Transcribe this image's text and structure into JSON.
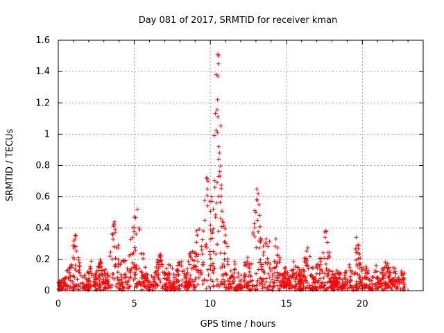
{
  "chart_data": {
    "type": "scatter",
    "title": "Day 081 of 2017, SRMTID for receiver kman",
    "xlabel": "GPS time / hours",
    "ylabel": "SRMTID / TECUs",
    "xlim": [
      0,
      24
    ],
    "ylim": [
      0,
      1.6
    ],
    "x_ticks": [
      0,
      5,
      10,
      15,
      20
    ],
    "x_tick_labels": [
      "0",
      "5",
      "10",
      "15",
      "20"
    ],
    "y_ticks": [
      0,
      0.2,
      0.4,
      0.6,
      0.8,
      1,
      1.2,
      1.4,
      1.6
    ],
    "y_tick_labels": [
      "0",
      "0.2",
      "0.4",
      "0.6",
      "0.8",
      "1",
      "1.2",
      "1.4",
      "1.6"
    ],
    "grid": true,
    "marker": "+",
    "color": "#ff0000",
    "x_end": 22.8,
    "baseline_bursts": [
      {
        "t": 0.0,
        "v": 0.08
      },
      {
        "t": 0.5,
        "v": 0.12
      },
      {
        "t": 1.1,
        "v": 0.34
      },
      {
        "t": 1.5,
        "v": 0.15
      },
      {
        "t": 2.2,
        "v": 0.18
      },
      {
        "t": 2.8,
        "v": 0.2
      },
      {
        "t": 3.7,
        "v": 0.44
      },
      {
        "t": 4.3,
        "v": 0.2
      },
      {
        "t": 5.0,
        "v": 0.47
      },
      {
        "t": 5.3,
        "v": 0.4
      },
      {
        "t": 6.0,
        "v": 0.1
      },
      {
        "t": 6.7,
        "v": 0.22
      },
      {
        "t": 7.3,
        "v": 0.18
      },
      {
        "t": 8.0,
        "v": 0.2
      },
      {
        "t": 8.8,
        "v": 0.28
      },
      {
        "t": 9.2,
        "v": 0.42
      },
      {
        "t": 9.8,
        "v": 0.72
      },
      {
        "t": 10.5,
        "v": 1.51
      },
      {
        "t": 11.0,
        "v": 0.35
      },
      {
        "t": 11.6,
        "v": 0.18
      },
      {
        "t": 12.4,
        "v": 0.2
      },
      {
        "t": 13.1,
        "v": 0.65
      },
      {
        "t": 13.7,
        "v": 0.37
      },
      {
        "t": 14.3,
        "v": 0.33
      },
      {
        "t": 15.0,
        "v": 0.15
      },
      {
        "t": 15.6,
        "v": 0.2
      },
      {
        "t": 16.4,
        "v": 0.26
      },
      {
        "t": 17.2,
        "v": 0.22
      },
      {
        "t": 17.6,
        "v": 0.38
      },
      {
        "t": 18.4,
        "v": 0.12
      },
      {
        "t": 19.1,
        "v": 0.15
      },
      {
        "t": 19.6,
        "v": 0.34
      },
      {
        "t": 20.2,
        "v": 0.15
      },
      {
        "t": 20.9,
        "v": 0.14
      },
      {
        "t": 21.5,
        "v": 0.2
      },
      {
        "t": 22.0,
        "v": 0.15
      },
      {
        "t": 22.6,
        "v": 0.12
      }
    ],
    "peak_series": [
      {
        "x": 10.5,
        "y": 1.51
      },
      {
        "x": 10.55,
        "y": 1.5
      },
      {
        "x": 10.52,
        "y": 1.45
      },
      {
        "x": 10.5,
        "y": 1.37
      },
      {
        "x": 10.48,
        "y": 1.22
      },
      {
        "x": 10.5,
        "y": 1.11
      },
      {
        "x": 10.48,
        "y": 1.01
      },
      {
        "x": 10.55,
        "y": 0.92
      },
      {
        "x": 10.6,
        "y": 0.88
      },
      {
        "x": 10.55,
        "y": 0.84
      },
      {
        "x": 10.62,
        "y": 0.76
      },
      {
        "x": 10.45,
        "y": 0.69
      },
      {
        "x": 10.3,
        "y": 0.66
      },
      {
        "x": 9.75,
        "y": 0.72
      },
      {
        "x": 9.85,
        "y": 0.7
      },
      {
        "x": 9.8,
        "y": 0.65
      },
      {
        "x": 10.1,
        "y": 0.6
      },
      {
        "x": 10.4,
        "y": 0.56
      },
      {
        "x": 10.2,
        "y": 0.52
      },
      {
        "x": 13.05,
        "y": 0.65
      },
      {
        "x": 13.15,
        "y": 0.62
      },
      {
        "x": 13.1,
        "y": 0.58
      },
      {
        "x": 13.2,
        "y": 0.55
      },
      {
        "x": 13.0,
        "y": 0.5
      },
      {
        "x": 13.1,
        "y": 0.45
      },
      {
        "x": 3.7,
        "y": 0.44
      },
      {
        "x": 3.65,
        "y": 0.42
      },
      {
        "x": 3.75,
        "y": 0.39
      },
      {
        "x": 5.2,
        "y": 0.52
      },
      {
        "x": 5.0,
        "y": 0.47
      },
      {
        "x": 5.3,
        "y": 0.4
      },
      {
        "x": 17.6,
        "y": 0.38
      },
      {
        "x": 17.55,
        "y": 0.34
      },
      {
        "x": 19.6,
        "y": 0.34
      },
      {
        "x": 1.15,
        "y": 0.35
      },
      {
        "x": 1.1,
        "y": 0.33
      }
    ]
  }
}
